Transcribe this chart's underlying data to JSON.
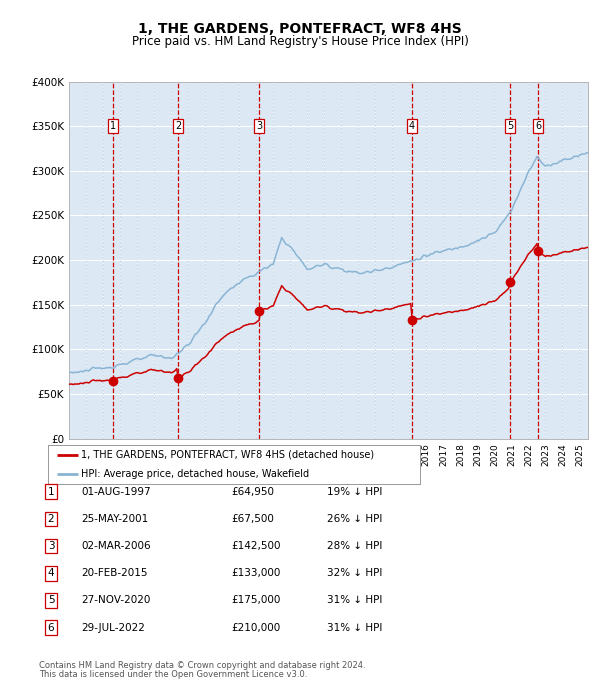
{
  "title": "1, THE GARDENS, PONTEFRACT, WF8 4HS",
  "subtitle": "Price paid vs. HM Land Registry's House Price Index (HPI)",
  "title_fontsize": 10,
  "subtitle_fontsize": 8.5,
  "plot_bg_color": "#dce9f5",
  "legend_line1": "1, THE GARDENS, PONTEFRACT, WF8 4HS (detached house)",
  "legend_line2": "HPI: Average price, detached house, Wakefield",
  "footer1": "Contains HM Land Registry data © Crown copyright and database right 2024.",
  "footer2": "This data is licensed under the Open Government Licence v3.0.",
  "sale_dates_x": [
    1997.58,
    2001.4,
    2006.17,
    2015.13,
    2020.91,
    2022.58
  ],
  "sale_prices_y": [
    64950,
    67500,
    142500,
    133000,
    175000,
    210000
  ],
  "sale_labels": [
    "1",
    "2",
    "3",
    "4",
    "5",
    "6"
  ],
  "sale_label_dates": [
    "01-AUG-1997",
    "25-MAY-2001",
    "02-MAR-2006",
    "20-FEB-2015",
    "27-NOV-2020",
    "29-JUL-2022"
  ],
  "sale_label_prices": [
    "£64,950",
    "£67,500",
    "£142,500",
    "£133,000",
    "£175,000",
    "£210,000"
  ],
  "sale_label_hpi": [
    "19% ↓ HPI",
    "26% ↓ HPI",
    "28% ↓ HPI",
    "32% ↓ HPI",
    "31% ↓ HPI",
    "31% ↓ HPI"
  ],
  "ylim": [
    0,
    400000
  ],
  "xlim_start": 1995.0,
  "xlim_end": 2025.5,
  "hpi_color": "#8ab4d4",
  "price_color": "#cc0000",
  "hpi_color_dark": "#5a9abe"
}
